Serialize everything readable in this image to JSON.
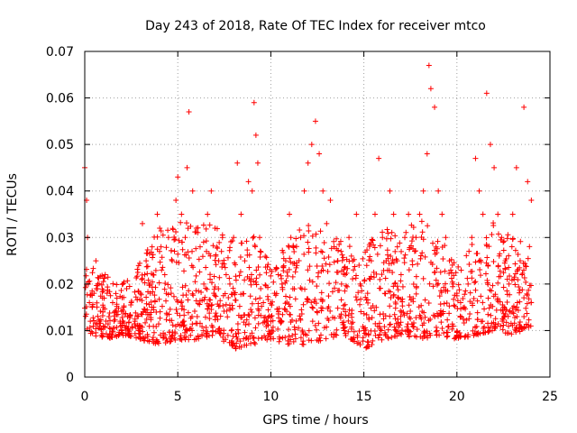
{
  "chart_data": {
    "type": "scatter",
    "title": "Day 243 of 2018, Rate Of TEC Index for receiver mtco",
    "xlabel": "GPS time / hours",
    "ylabel": "ROTI / TECUs",
    "xlim": [
      0,
      25
    ],
    "ylim": [
      0,
      0.07
    ],
    "xticks": [
      0,
      5,
      10,
      15,
      20,
      25
    ],
    "xtick_labels": [
      "0",
      "5",
      "10",
      "15",
      "20",
      "25"
    ],
    "yticks": [
      0,
      0.01,
      0.02,
      0.03,
      0.04,
      0.05,
      0.06,
      0.07
    ],
    "ytick_labels": [
      "0",
      "0.01",
      "0.02",
      "0.03",
      "0.04",
      "0.05",
      "0.06",
      "0.07"
    ],
    "grid": true,
    "marker": "plus",
    "color": "#ff0000",
    "series": [
      {
        "x": [
          0.0,
          0.1,
          0.15,
          0.2,
          0.25,
          0.3,
          0.4,
          0.5,
          0.6,
          0.7,
          0.8,
          0.9,
          1.0,
          1.1,
          1.2,
          1.3,
          1.5,
          1.7,
          1.9,
          2.1,
          2.3,
          2.5,
          2.7,
          2.9,
          3.0,
          3.1,
          3.3,
          3.5,
          3.7,
          3.9,
          4.1,
          4.3,
          4.5,
          4.7,
          4.9,
          5.0,
          5.2,
          5.4,
          5.5,
          5.6,
          5.8,
          6.0,
          6.2,
          6.4,
          6.6,
          6.8,
          7.0,
          7.2,
          7.4,
          7.6,
          7.8,
          8.0,
          8.2,
          8.4,
          8.6,
          8.8,
          9.0,
          9.1,
          9.2,
          9.3,
          9.4,
          9.6,
          9.8,
          10.0,
          10.2,
          10.4,
          10.6,
          10.8,
          11.0,
          11.2,
          11.4,
          11.6,
          11.8,
          12.0,
          12.2,
          12.4,
          12.6,
          12.8,
          13.0,
          13.2,
          13.4,
          13.6,
          13.8,
          14.0,
          14.2,
          14.4,
          14.6,
          14.8,
          15.0,
          15.2,
          15.4,
          15.6,
          15.8,
          16.0,
          16.2,
          16.4,
          16.6,
          16.8,
          17.0,
          17.2,
          17.4,
          17.6,
          17.8,
          18.0,
          18.2,
          18.4,
          18.5,
          18.6,
          18.8,
          19.0,
          19.2,
          19.4,
          19.6,
          19.8,
          20.0,
          20.2,
          20.4,
          20.6,
          20.8,
          21.0,
          21.2,
          21.4,
          21.6,
          21.8,
          22.0,
          22.2,
          22.4,
          22.6,
          22.8,
          23.0,
          23.2,
          23.4,
          23.6,
          23.8,
          24.0
        ],
        "y": [
          0.045,
          0.038,
          0.03,
          0.02,
          0.016,
          0.012,
          0.015,
          0.018,
          0.025,
          0.02,
          0.012,
          0.009,
          0.015,
          0.022,
          0.018,
          0.013,
          0.016,
          0.014,
          0.012,
          0.015,
          0.013,
          0.016,
          0.012,
          0.01,
          0.018,
          0.033,
          0.025,
          0.02,
          0.015,
          0.035,
          0.028,
          0.022,
          0.03,
          0.025,
          0.038,
          0.043,
          0.035,
          0.03,
          0.045,
          0.057,
          0.04,
          0.032,
          0.028,
          0.02,
          0.035,
          0.04,
          0.032,
          0.025,
          0.03,
          0.022,
          0.02,
          0.03,
          0.046,
          0.035,
          0.025,
          0.042,
          0.04,
          0.059,
          0.052,
          0.046,
          0.03,
          0.016,
          0.012,
          0.013,
          0.018,
          0.022,
          0.02,
          0.025,
          0.035,
          0.028,
          0.024,
          0.03,
          0.04,
          0.046,
          0.05,
          0.055,
          0.048,
          0.04,
          0.033,
          0.038,
          0.028,
          0.025,
          0.02,
          0.022,
          0.03,
          0.025,
          0.035,
          0.02,
          0.01,
          0.018,
          0.025,
          0.035,
          0.047,
          0.03,
          0.025,
          0.04,
          0.035,
          0.028,
          0.022,
          0.03,
          0.035,
          0.025,
          0.03,
          0.035,
          0.04,
          0.048,
          0.067,
          0.062,
          0.058,
          0.04,
          0.035,
          0.03,
          0.025,
          0.02,
          0.018,
          0.016,
          0.015,
          0.02,
          0.03,
          0.047,
          0.04,
          0.035,
          0.061,
          0.05,
          0.045,
          0.035,
          0.03,
          0.025,
          0.02,
          0.035,
          0.045,
          0.025,
          0.058,
          0.042,
          0.038
        ]
      }
    ],
    "band": {
      "x": [
        0,
        1,
        2,
        3,
        4,
        5,
        6,
        7,
        8,
        9,
        10,
        11,
        12,
        13,
        14,
        15,
        16,
        17,
        18,
        19,
        20,
        21,
        22,
        23,
        24
      ],
      "low": [
        0.01,
        0.008,
        0.009,
        0.008,
        0.007,
        0.008,
        0.008,
        0.009,
        0.006,
        0.007,
        0.008,
        0.007,
        0.007,
        0.008,
        0.009,
        0.006,
        0.008,
        0.009,
        0.008,
        0.009,
        0.008,
        0.009,
        0.01,
        0.009,
        0.011
      ],
      "high": [
        0.025,
        0.022,
        0.02,
        0.025,
        0.032,
        0.033,
        0.035,
        0.033,
        0.03,
        0.032,
        0.024,
        0.03,
        0.033,
        0.032,
        0.03,
        0.027,
        0.033,
        0.03,
        0.035,
        0.03,
        0.025,
        0.03,
        0.035,
        0.03,
        0.028
      ]
    }
  }
}
